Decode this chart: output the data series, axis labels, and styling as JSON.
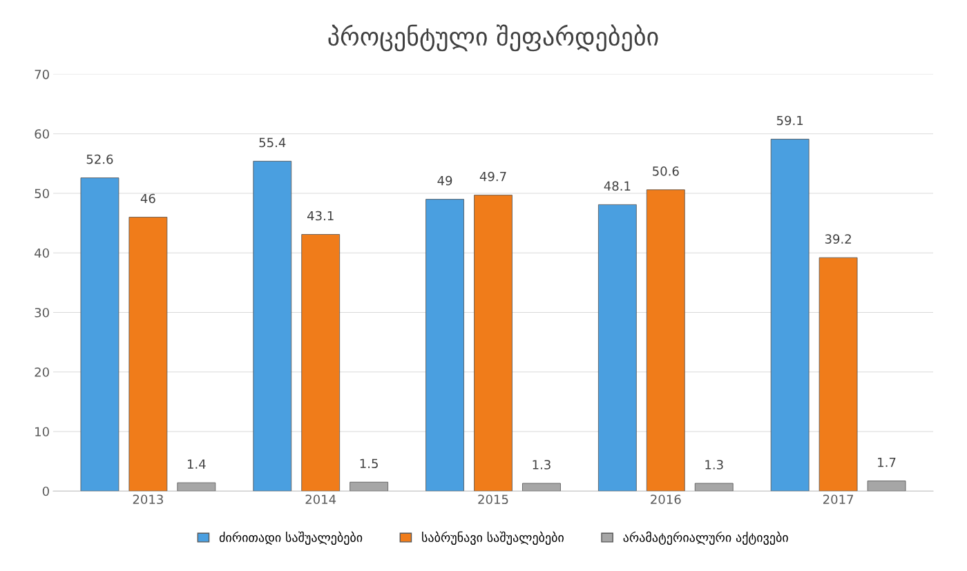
{
  "chart_data": {
    "type": "bar",
    "title": "პროცენტული შეფარდებები",
    "categories": [
      "2013",
      "2014",
      "2015",
      "2016",
      "2017"
    ],
    "series": [
      {
        "name": "ძირითადი საშუალებები",
        "color": "#4a9fe0",
        "values": [
          52.6,
          55.4,
          49,
          48.1,
          59.1
        ]
      },
      {
        "name": "საბრუნავი საშუალებები",
        "color": "#f07c1a",
        "values": [
          46,
          43.1,
          49.7,
          50.6,
          39.2
        ]
      },
      {
        "name": "არამატერიალური აქტივები",
        "color": "#a6a6a6",
        "values": [
          1.4,
          1.5,
          1.3,
          1.3,
          1.7
        ]
      }
    ],
    "ylim": [
      0,
      70
    ],
    "yticks": [
      0,
      10,
      20,
      30,
      40,
      50,
      60,
      70
    ],
    "grid": "y",
    "legend": "bottom",
    "data_labels": true
  }
}
